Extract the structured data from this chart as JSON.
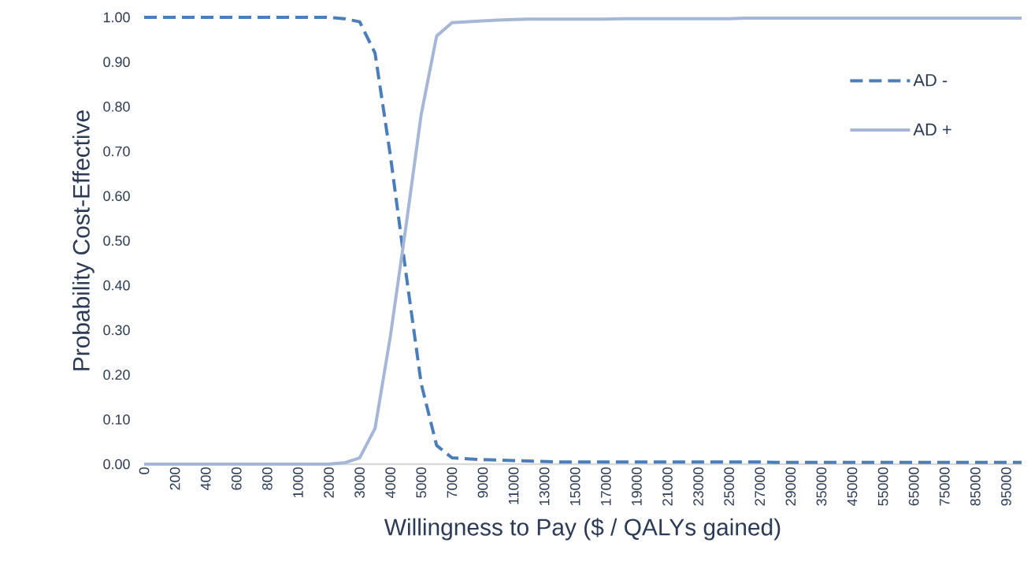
{
  "chart_data": {
    "type": "line",
    "xlabel": "Willingness to Pay ($ / QALYs gained)",
    "ylabel": "Probability Cost-Effective",
    "categories": [
      "0",
      null,
      "200",
      null,
      "400",
      null,
      "600",
      null,
      "800",
      null,
      "1000",
      null,
      "2000",
      null,
      "3000",
      null,
      "4000",
      null,
      "5000",
      null,
      "7000",
      null,
      "9000",
      null,
      "11000",
      null,
      "13000",
      null,
      "15000",
      null,
      "17000",
      null,
      "19000",
      null,
      "21000",
      null,
      "23000",
      null,
      "25000",
      null,
      "27000",
      null,
      "29000",
      null,
      "35000",
      null,
      "45000",
      null,
      "55000",
      null,
      "65000",
      null,
      "75000",
      null,
      "85000",
      null,
      "95000",
      null
    ],
    "series": [
      {
        "name": "AD -",
        "color": "#4a7ebb",
        "line_style": "dashed",
        "values": [
          1.0,
          1.0,
          1.0,
          1.0,
          1.0,
          1.0,
          1.0,
          1.0,
          1.0,
          1.0,
          1.0,
          1.0,
          1.0,
          0.997,
          0.99,
          0.92,
          0.69,
          0.43,
          0.18,
          0.042,
          0.014,
          0.012,
          0.01,
          0.009,
          0.008,
          0.007,
          0.006,
          0.005,
          0.005,
          0.005,
          0.005,
          0.005,
          0.005,
          0.005,
          0.005,
          0.005,
          0.005,
          0.005,
          0.005,
          0.005,
          0.005,
          0.004,
          0.004,
          0.004,
          0.004,
          0.004,
          0.004,
          0.004,
          0.004,
          0.004,
          0.004,
          0.004,
          0.004,
          0.004,
          0.004,
          0.004,
          0.004,
          0.004
        ]
      },
      {
        "name": "AD +",
        "color": "#a5b6d6",
        "line_style": "solid",
        "values": [
          0.0,
          0.0,
          0.0,
          0.0,
          0.0,
          0.0,
          0.0,
          0.0,
          0.0,
          0.0,
          0.0,
          0.0,
          0.0,
          0.003,
          0.014,
          0.08,
          0.287,
          0.53,
          0.783,
          0.958,
          0.988,
          0.99,
          0.992,
          0.994,
          0.995,
          0.996,
          0.996,
          0.996,
          0.996,
          0.996,
          0.996,
          0.997,
          0.997,
          0.997,
          0.997,
          0.997,
          0.997,
          0.997,
          0.997,
          0.998,
          0.998,
          0.998,
          0.998,
          0.998,
          0.998,
          0.998,
          0.998,
          0.998,
          0.998,
          0.998,
          0.998,
          0.998,
          0.998,
          0.998,
          0.998,
          0.998,
          0.998,
          0.998
        ]
      }
    ],
    "ylim": [
      0,
      1
    ],
    "yticks": [
      {
        "value": 0,
        "label": "0.00"
      },
      {
        "value": 0.1,
        "label": "0.10"
      },
      {
        "value": 0.2,
        "label": "0.20"
      },
      {
        "value": 0.3,
        "label": "0.30"
      },
      {
        "value": 0.4,
        "label": "0.40"
      },
      {
        "value": 0.5,
        "label": "0.50"
      },
      {
        "value": 0.6,
        "label": "0.60"
      },
      {
        "value": 0.7,
        "label": "0.70"
      },
      {
        "value": 0.8,
        "label": "0.80"
      },
      {
        "value": 0.9,
        "label": "0.90"
      },
      {
        "value": 1,
        "label": "1.00"
      }
    ],
    "legend": "top right",
    "grid": false
  }
}
